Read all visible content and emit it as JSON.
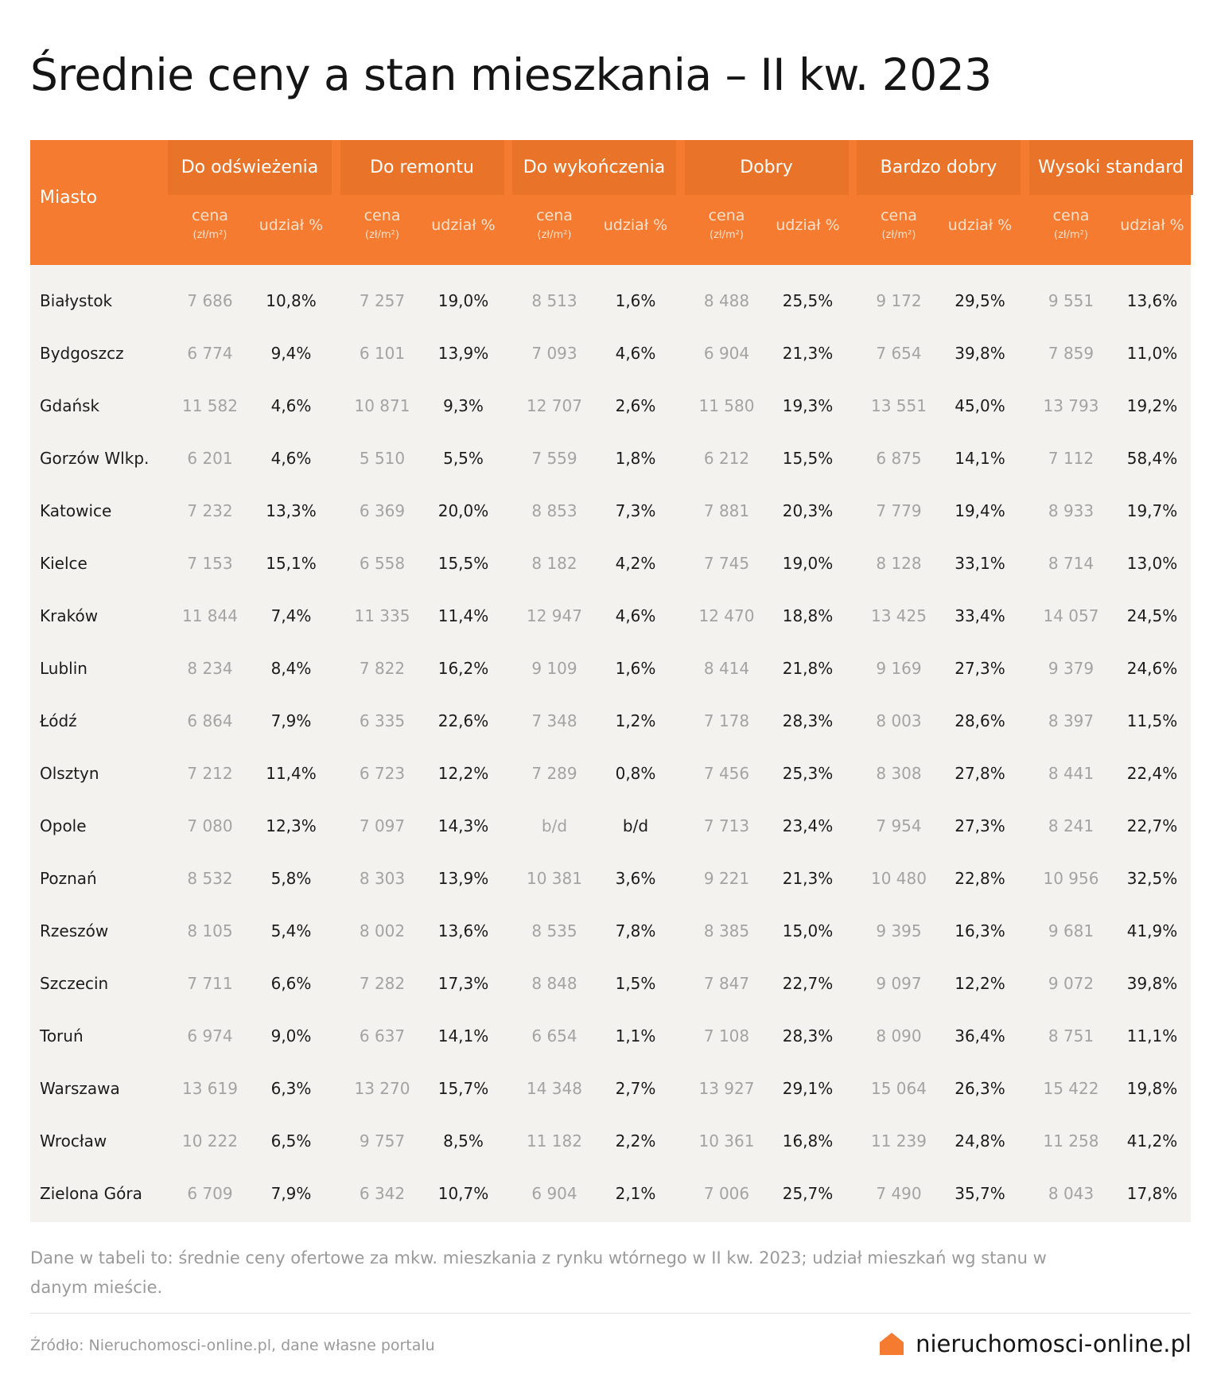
{
  "title": "Średnie ceny a stan mieszkania – II kw. 2023",
  "colors": {
    "header_orange": "#f47b30",
    "header_box": "#e97429",
    "table_bg": "#f3f2ef",
    "price_gray": "#a3a3a3"
  },
  "chart_data": {
    "type": "table",
    "columns": {
      "city_header": "Miasto",
      "price_label": "cena",
      "price_unit": "(zł/m²)",
      "share_label": "udział %",
      "conditions": [
        "Do odświeżenia",
        "Do remontu",
        "Do wykończenia",
        "Dobry",
        "Bardzo dobry",
        "Wysoki standard"
      ]
    },
    "rows": [
      {
        "city": "Białystok",
        "values": [
          "7 686",
          "10,8%",
          "7 257",
          "19,0%",
          "8 513",
          "1,6%",
          "8 488",
          "25,5%",
          "9 172",
          "29,5%",
          "9 551",
          "13,6%"
        ]
      },
      {
        "city": "Bydgoszcz",
        "values": [
          "6 774",
          "9,4%",
          "6 101",
          "13,9%",
          "7 093",
          "4,6%",
          "6 904",
          "21,3%",
          "7 654",
          "39,8%",
          "7 859",
          "11,0%"
        ]
      },
      {
        "city": "Gdańsk",
        "values": [
          "11 582",
          "4,6%",
          "10 871",
          "9,3%",
          "12 707",
          "2,6%",
          "11 580",
          "19,3%",
          "13 551",
          "45,0%",
          "13 793",
          "19,2%"
        ]
      },
      {
        "city": "Gorzów Wlkp.",
        "values": [
          "6 201",
          "4,6%",
          "5 510",
          "5,5%",
          "7 559",
          "1,8%",
          "6 212",
          "15,5%",
          "6 875",
          "14,1%",
          "7 112",
          "58,4%"
        ]
      },
      {
        "city": "Katowice",
        "values": [
          "7 232",
          "13,3%",
          "6 369",
          "20,0%",
          "8 853",
          "7,3%",
          "7 881",
          "20,3%",
          "7 779",
          "19,4%",
          "8 933",
          "19,7%"
        ]
      },
      {
        "city": "Kielce",
        "values": [
          "7 153",
          "15,1%",
          "6 558",
          "15,5%",
          "8 182",
          "4,2%",
          "7 745",
          "19,0%",
          "8 128",
          "33,1%",
          "8 714",
          "13,0%"
        ]
      },
      {
        "city": "Kraków",
        "values": [
          "11 844",
          "7,4%",
          "11 335",
          "11,4%",
          "12 947",
          "4,6%",
          "12 470",
          "18,8%",
          "13 425",
          "33,4%",
          "14 057",
          "24,5%"
        ]
      },
      {
        "city": "Lublin",
        "values": [
          "8 234",
          "8,4%",
          "7 822",
          "16,2%",
          "9 109",
          "1,6%",
          "8 414",
          "21,8%",
          "9 169",
          "27,3%",
          "9 379",
          "24,6%"
        ]
      },
      {
        "city": "Łódź",
        "values": [
          "6 864",
          "7,9%",
          "6 335",
          "22,6%",
          "7 348",
          "1,2%",
          "7 178",
          "28,3%",
          "8 003",
          "28,6%",
          "8 397",
          "11,5%"
        ]
      },
      {
        "city": "Olsztyn",
        "values": [
          "7 212",
          "11,4%",
          "6 723",
          "12,2%",
          "7 289",
          "0,8%",
          "7 456",
          "25,3%",
          "8 308",
          "27,8%",
          "8 441",
          "22,4%"
        ]
      },
      {
        "city": "Opole",
        "values": [
          "7 080",
          "12,3%",
          "7 097",
          "14,3%",
          "b/d",
          "b/d",
          "7 713",
          "23,4%",
          "7 954",
          "27,3%",
          "8 241",
          "22,7%"
        ]
      },
      {
        "city": "Poznań",
        "values": [
          "8 532",
          "5,8%",
          "8 303",
          "13,9%",
          "10 381",
          "3,6%",
          "9 221",
          "21,3%",
          "10 480",
          "22,8%",
          "10 956",
          "32,5%"
        ]
      },
      {
        "city": "Rzeszów",
        "values": [
          "8 105",
          "5,4%",
          "8 002",
          "13,6%",
          "8 535",
          "7,8%",
          "8 385",
          "15,0%",
          "9 395",
          "16,3%",
          "9 681",
          "41,9%"
        ]
      },
      {
        "city": "Szczecin",
        "values": [
          "7 711",
          "6,6%",
          "7 282",
          "17,3%",
          "8 848",
          "1,5%",
          "7 847",
          "22,7%",
          "9 097",
          "12,2%",
          "9 072",
          "39,8%"
        ]
      },
      {
        "city": "Toruń",
        "values": [
          "6 974",
          "9,0%",
          "6 637",
          "14,1%",
          "6 654",
          "1,1%",
          "7 108",
          "28,3%",
          "8 090",
          "36,4%",
          "8 751",
          "11,1%"
        ]
      },
      {
        "city": "Warszawa",
        "values": [
          "13 619",
          "6,3%",
          "13 270",
          "15,7%",
          "14 348",
          "2,7%",
          "13 927",
          "29,1%",
          "15 064",
          "26,3%",
          "15 422",
          "19,8%"
        ]
      },
      {
        "city": "Wrocław",
        "values": [
          "10 222",
          "6,5%",
          "9 757",
          "8,5%",
          "11 182",
          "2,2%",
          "10 361",
          "16,8%",
          "11 239",
          "24,8%",
          "11 258",
          "41,2%"
        ]
      },
      {
        "city": "Zielona Góra",
        "values": [
          "6 709",
          "7,9%",
          "6 342",
          "10,7%",
          "6 904",
          "2,1%",
          "7 006",
          "25,7%",
          "7 490",
          "35,7%",
          "8 043",
          "17,8%"
        ]
      }
    ]
  },
  "note": "Dane w tabeli to: średnie ceny ofertowe za mkw. mieszkania z rynku wtórnego w II kw. 2023; udział mieszkań wg stanu w danym mieście.",
  "source": "Źródło: Nieruchomosci-online.pl, dane własne portalu",
  "logo": {
    "text": "nieruchomosci-online.pl",
    "icon": "house-icon"
  }
}
